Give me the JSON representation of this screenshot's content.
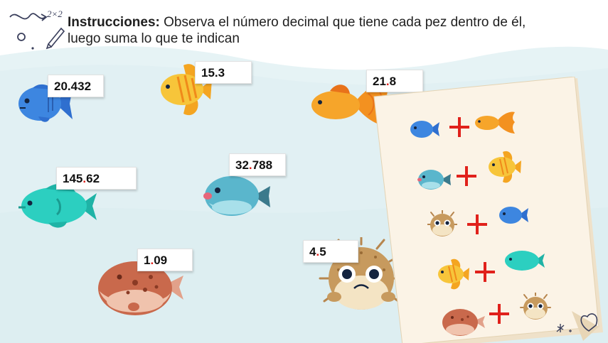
{
  "instructions": {
    "title": "Instrucciones:",
    "text": " Observa el número decimal que tiene cada pez dentro de él,",
    "text2": "luego suma lo que te indican"
  },
  "doodle": {
    "math": "2×2"
  },
  "fish": [
    {
      "id": "blue",
      "int": "20",
      "dot": ".",
      "dec": "432"
    },
    {
      "id": "yellow",
      "int": "15",
      "dot": ".",
      "dec": "3"
    },
    {
      "id": "orange",
      "int": "21",
      "dot": ".",
      "dec": "8"
    },
    {
      "id": "teal-big",
      "int": "145",
      "dot": ".",
      "dec": "62"
    },
    {
      "id": "teal-puffer",
      "int": "32",
      "dot": ".",
      "dec": "788"
    },
    {
      "id": "brown-puffer",
      "int": "1",
      "dot": ".",
      "dec": "09"
    },
    {
      "id": "spiky-puffer",
      "int": "4",
      "dot": ".",
      "dec": "5"
    }
  ],
  "worksheet": {
    "rows": [
      {
        "left": "blue-fish-icon",
        "op": "+",
        "right": "orange-fish-icon"
      },
      {
        "left": "teal-puffer-icon",
        "op": "+",
        "right": "yellow-fish-icon"
      },
      {
        "left": "spiky-puffer-icon",
        "op": "+",
        "right": "blue-fish-icon"
      },
      {
        "left": "yellow-fish-icon",
        "op": "+",
        "right": "teal-fish-icon"
      },
      {
        "left": "brown-puffer-icon",
        "op": "+",
        "right": "spiky-puffer-icon"
      }
    ]
  },
  "colors": {
    "water": "#e4f2f4",
    "wave": "#cfe7ea",
    "accent_red": "#e0211b",
    "paper": "#fbf3e6"
  }
}
